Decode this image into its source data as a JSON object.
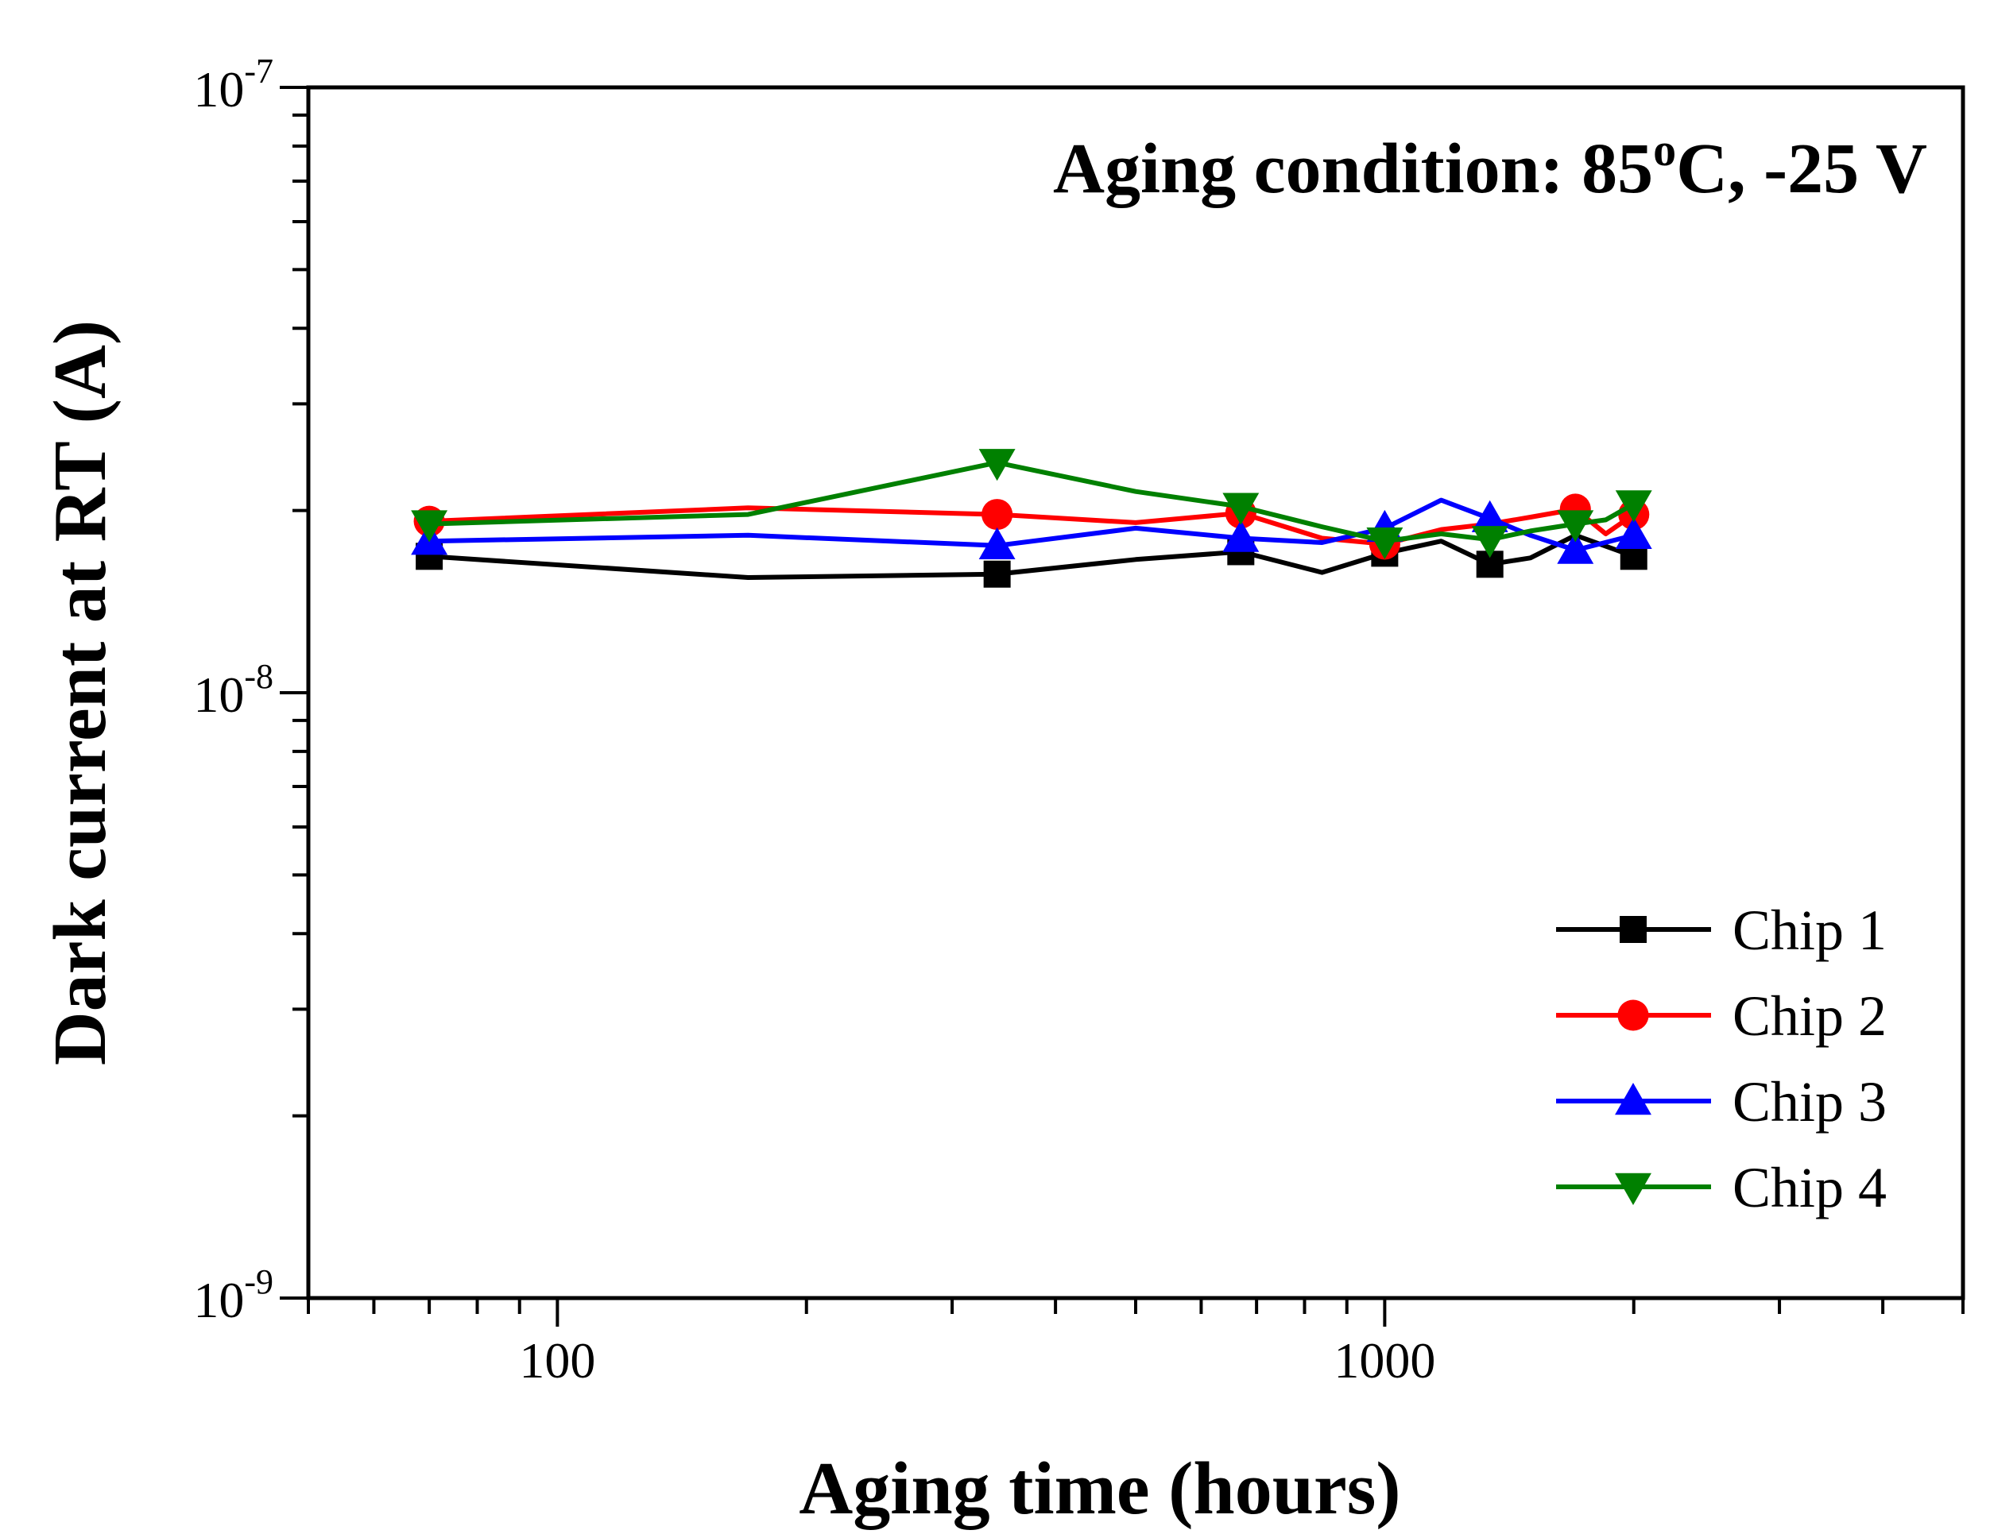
{
  "chart_data": {
    "type": "line",
    "title": "",
    "annotation": {
      "prefix": "Aging condition: 85",
      "superscript": "o",
      "suffix": "C, -25 V"
    },
    "xlabel": "Aging time (hours)",
    "ylabel": "Dark current at RT (A)",
    "xscale": "log",
    "yscale": "log",
    "xlim": [
      50,
      5000
    ],
    "ylim": [
      1e-09,
      1e-07
    ],
    "x_ticks": [
      {
        "value": 100,
        "label": "100"
      },
      {
        "value": 1000,
        "label": "1000"
      }
    ],
    "y_ticks": [
      {
        "value": 1e-09,
        "base": "10",
        "exp": "-9"
      },
      {
        "value": 1e-08,
        "base": "10",
        "exp": "-8"
      },
      {
        "value": 1e-07,
        "base": "10",
        "exp": "-7"
      }
    ],
    "legend_position": "bottom-right",
    "series": [
      {
        "name": "Chip 1",
        "color": "#000000",
        "marker": "square",
        "x": [
          70,
          170,
          340,
          500,
          670,
          840,
          1000,
          1170,
          1340,
          1500,
          1700,
          2000
        ],
        "y": [
          1.68e-08,
          1.55e-08,
          1.57e-08,
          1.66e-08,
          1.71e-08,
          1.58e-08,
          1.7e-08,
          1.78e-08,
          1.63e-08,
          1.67e-08,
          1.82e-08,
          1.68e-08
        ],
        "markers_at": [
          70,
          340,
          670,
          1000,
          1340,
          2000
        ]
      },
      {
        "name": "Chip 2",
        "color": "#ff0000",
        "marker": "circle",
        "x": [
          70,
          170,
          340,
          500,
          670,
          840,
          1000,
          1170,
          1340,
          1500,
          1700,
          1850,
          2000
        ],
        "y": [
          1.92e-08,
          2.02e-08,
          1.97e-08,
          1.91e-08,
          1.98e-08,
          1.8e-08,
          1.76e-08,
          1.86e-08,
          1.9e-08,
          1.95e-08,
          2.01e-08,
          1.83e-08,
          1.97e-08
        ],
        "markers_at": [
          70,
          340,
          670,
          1000,
          1700,
          2000
        ]
      },
      {
        "name": "Chip 3",
        "color": "#0000ff",
        "marker": "triangle-up",
        "x": [
          70,
          170,
          340,
          500,
          670,
          840,
          1000,
          1170,
          1340,
          1500,
          1700,
          2000
        ],
        "y": [
          1.78e-08,
          1.82e-08,
          1.75e-08,
          1.87e-08,
          1.8e-08,
          1.77e-08,
          1.87e-08,
          2.08e-08,
          1.94e-08,
          1.82e-08,
          1.72e-08,
          1.82e-08
        ],
        "markers_at": [
          70,
          340,
          670,
          1000,
          1340,
          1700,
          2000
        ]
      },
      {
        "name": "Chip 4",
        "color": "#008000",
        "marker": "triangle-down",
        "x": [
          70,
          170,
          340,
          500,
          670,
          840,
          1000,
          1170,
          1340,
          1500,
          1700,
          1850,
          2000
        ],
        "y": [
          1.9e-08,
          1.97e-08,
          2.4e-08,
          2.15e-08,
          2.03e-08,
          1.88e-08,
          1.78e-08,
          1.83e-08,
          1.79e-08,
          1.85e-08,
          1.9e-08,
          1.93e-08,
          2.05e-08
        ],
        "markers_at": [
          70,
          340,
          670,
          1000,
          1340,
          1700,
          2000
        ]
      }
    ]
  }
}
